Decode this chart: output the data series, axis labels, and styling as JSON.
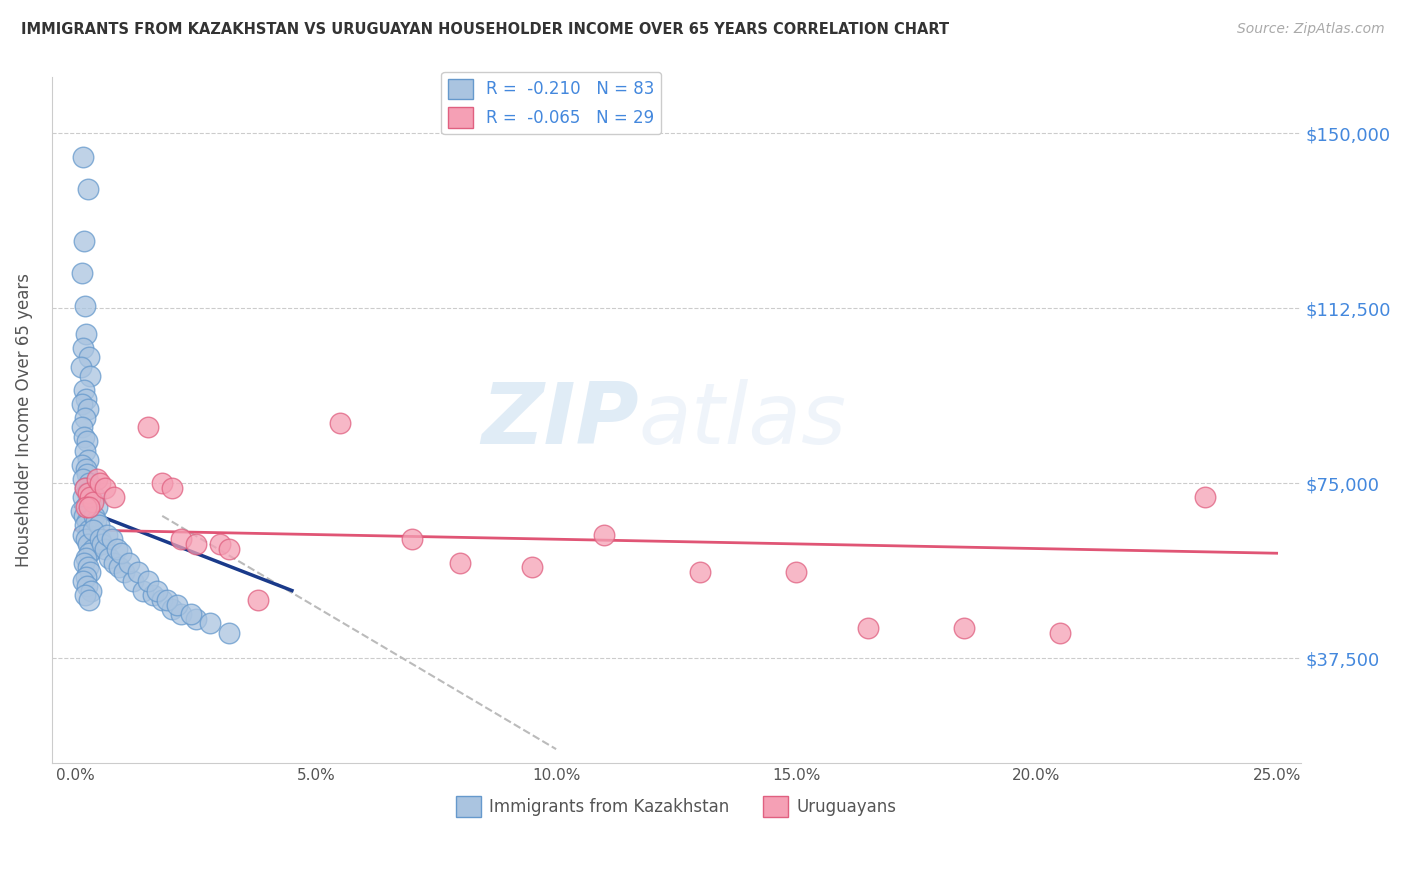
{
  "title": "IMMIGRANTS FROM KAZAKHSTAN VS URUGUAYAN HOUSEHOLDER INCOME OVER 65 YEARS CORRELATION CHART",
  "source": "Source: ZipAtlas.com",
  "ylabel": "Householder Income Over 65 years",
  "xlabel_ticks": [
    "0.0%",
    "5.0%",
    "10.0%",
    "15.0%",
    "20.0%",
    "25.0%"
  ],
  "xlabel_vals": [
    0.0,
    5.0,
    10.0,
    15.0,
    20.0,
    25.0
  ],
  "ylabel_ticks": [
    "$150,000",
    "$112,500",
    "$75,000",
    "$37,500"
  ],
  "ylabel_vals": [
    150000,
    112500,
    75000,
    37500
  ],
  "xlim": [
    -0.5,
    25.5
  ],
  "ylim": [
    15000,
    162000
  ],
  "legend1_label": "R =  -0.210   N = 83",
  "legend2_label": "R =  -0.065   N = 29",
  "legend_bottom_label1": "Immigrants from Kazakhstan",
  "legend_bottom_label2": "Uruguayans",
  "blue_color": "#aac4e0",
  "blue_edge": "#6699cc",
  "pink_color": "#f5a0b5",
  "pink_edge": "#e06080",
  "blue_line_color": "#1a3a8a",
  "pink_line_color": "#e05575",
  "gray_dash_color": "#bbbbbb",
  "title_color": "#333333",
  "axis_label_color": "#555555",
  "right_tick_color": "#4488dd",
  "blue_scatter_x": [
    0.15,
    0.25,
    0.18,
    0.12,
    0.2,
    0.22,
    0.16,
    0.28,
    0.1,
    0.3,
    0.18,
    0.22,
    0.14,
    0.25,
    0.2,
    0.12,
    0.17,
    0.23,
    0.19,
    0.26,
    0.13,
    0.21,
    0.24,
    0.16,
    0.27,
    0.2,
    0.23,
    0.15,
    0.3,
    0.19,
    0.11,
    0.18,
    0.24,
    0.2,
    0.27,
    0.15,
    0.21,
    0.25,
    0.35,
    0.28,
    0.22,
    0.17,
    0.25,
    0.29,
    0.21,
    0.16,
    0.24,
    0.32,
    0.2,
    0.28,
    0.4,
    0.45,
    0.38,
    0.42,
    0.48,
    0.35,
    0.5,
    0.55,
    0.6,
    0.7,
    0.8,
    0.9,
    1.0,
    1.2,
    1.4,
    1.6,
    1.8,
    2.0,
    2.2,
    2.5,
    0.65,
    0.75,
    0.85,
    0.95,
    1.1,
    1.3,
    1.5,
    1.7,
    1.9,
    2.1,
    2.4,
    2.8,
    3.2
  ],
  "blue_scatter_y": [
    145000,
    138000,
    127000,
    120000,
    113000,
    107000,
    104000,
    102000,
    100000,
    98000,
    95000,
    93000,
    92000,
    91000,
    89000,
    87000,
    85000,
    84000,
    82000,
    80000,
    79000,
    78000,
    77000,
    76000,
    75000,
    74000,
    73000,
    72000,
    71000,
    70000,
    69000,
    68000,
    67000,
    66000,
    65000,
    64000,
    63000,
    62000,
    61000,
    60000,
    59000,
    58000,
    57000,
    56000,
    55000,
    54000,
    53000,
    52000,
    51000,
    50000,
    72000,
    70000,
    68000,
    67000,
    66000,
    65000,
    63000,
    62000,
    61000,
    59000,
    58000,
    57000,
    56000,
    54000,
    52000,
    51000,
    50000,
    48000,
    47000,
    46000,
    64000,
    63000,
    61000,
    60000,
    58000,
    56000,
    54000,
    52000,
    50000,
    49000,
    47000,
    45000,
    43000
  ],
  "pink_scatter_x": [
    0.2,
    0.25,
    0.3,
    0.35,
    0.22,
    0.28,
    0.45,
    0.5,
    0.6,
    0.8,
    1.5,
    1.8,
    2.0,
    2.2,
    2.5,
    3.0,
    3.2,
    3.8,
    5.5,
    7.0,
    8.0,
    9.5,
    11.0,
    13.0,
    15.0,
    16.5,
    18.5,
    20.5,
    23.5
  ],
  "pink_scatter_y": [
    74000,
    73000,
    72000,
    71000,
    70000,
    70000,
    76000,
    75000,
    74000,
    72000,
    87000,
    75000,
    74000,
    63000,
    62000,
    62000,
    61000,
    50000,
    88000,
    63000,
    58000,
    57000,
    64000,
    56000,
    56000,
    44000,
    44000,
    43000,
    72000
  ],
  "blue_trend_x0": 0.0,
  "blue_trend_y0": 70000,
  "blue_trend_x1": 4.5,
  "blue_trend_y1": 52000,
  "pink_trend_x0": 0.0,
  "pink_trend_y0": 65000,
  "pink_trend_x1": 25.0,
  "pink_trend_y1": 60000,
  "gray_dash_x0": 1.8,
  "gray_dash_y0": 68000,
  "gray_dash_x1": 10.0,
  "gray_dash_y1": 18000
}
